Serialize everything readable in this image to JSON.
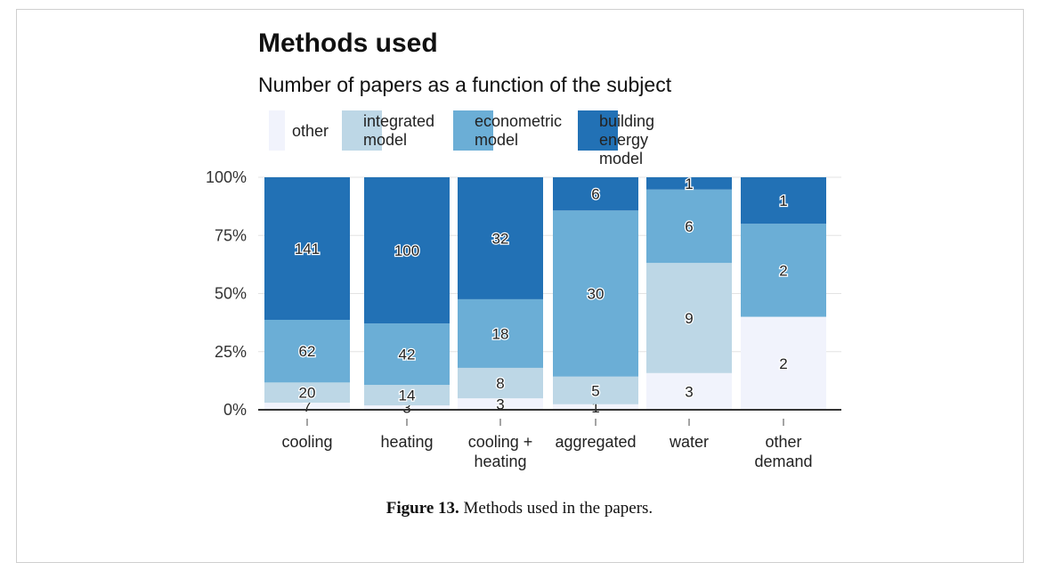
{
  "chart_data": {
    "type": "bar",
    "stacked": "percent",
    "title": "Methods used",
    "subtitle": "Number of papers as a function of the subject",
    "xlabel": "",
    "ylabel": "",
    "ylim": [
      0,
      100
    ],
    "yticks": [
      "0%",
      "25%",
      "50%",
      "75%",
      "100%"
    ],
    "categories": [
      "cooling",
      "heating",
      "cooling +\nheating",
      "aggregated",
      "water",
      "other\ndemand"
    ],
    "series": [
      {
        "name": "other",
        "color": "#f1f3fc",
        "values": [
          7,
          3,
          3,
          1,
          3,
          2
        ]
      },
      {
        "name": "integrated\nmodel",
        "color": "#bdd7e6",
        "values": [
          20,
          14,
          8,
          5,
          9,
          0
        ]
      },
      {
        "name": "econometric\nmodel",
        "color": "#6baed6",
        "values": [
          62,
          42,
          18,
          30,
          6,
          2
        ]
      },
      {
        "name": "building energy\nmodel",
        "color": "#2271b5",
        "values": [
          141,
          100,
          32,
          6,
          1,
          1
        ]
      }
    ],
    "legend_position": "top"
  },
  "caption": {
    "label": "Figure 13.",
    "text": " Methods used in the papers."
  }
}
